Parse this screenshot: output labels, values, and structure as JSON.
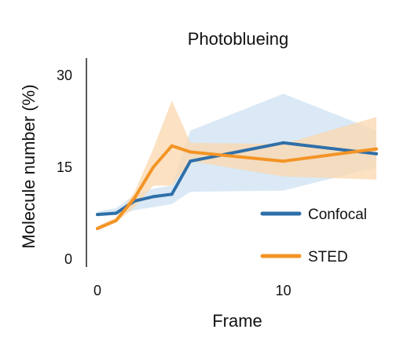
{
  "chart_data": {
    "type": "line",
    "title": "Photoblueing",
    "xlabel": "Frame",
    "ylabel": "Molecule number (%)",
    "xlim": [
      0,
      15
    ],
    "ylim": [
      0,
      30
    ],
    "x_ticks": [
      0,
      10
    ],
    "y_ticks": [
      0,
      15,
      30
    ],
    "grid": false,
    "legend_position": "bottom-right",
    "series": [
      {
        "name": "Confocal",
        "color": "#2f6fa8",
        "band_color": "#cde1f1",
        "x": [
          0,
          1,
          2,
          3,
          4,
          5,
          10,
          15
        ],
        "values": [
          7.3,
          7.5,
          9.5,
          10.2,
          10.6,
          16.0,
          19.0,
          17.2
        ],
        "lower": [
          7.0,
          7.2,
          8.0,
          8.5,
          9.0,
          11.0,
          11.2,
          15.0
        ],
        "upper": [
          7.8,
          8.3,
          10.5,
          11.5,
          12.0,
          21.0,
          27.0,
          21.0
        ]
      },
      {
        "name": "STED",
        "color": "#f39425",
        "band_color": "#fbd7ad",
        "x": [
          0,
          1,
          2,
          3,
          4,
          5,
          10,
          15
        ],
        "values": [
          5.0,
          6.3,
          10.0,
          15.0,
          18.5,
          17.5,
          16.0,
          18.0
        ],
        "lower": [
          4.8,
          6.0,
          8.5,
          12.0,
          12.0,
          16.0,
          13.5,
          13.0
        ],
        "upper": [
          5.4,
          6.8,
          11.0,
          18.0,
          25.9,
          19.0,
          18.8,
          23.2
        ]
      }
    ]
  }
}
